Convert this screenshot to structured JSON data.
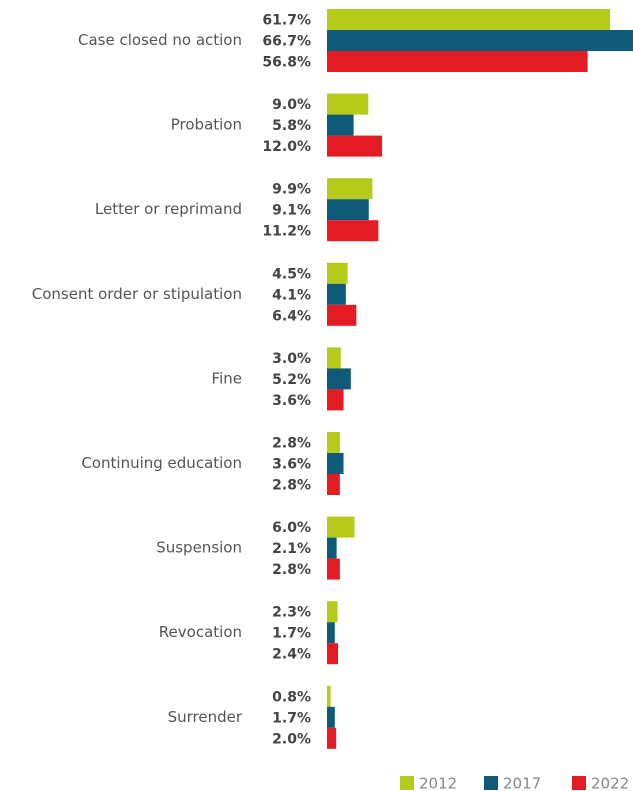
{
  "chart_data": {
    "type": "bar",
    "orientation": "horizontal",
    "categories": [
      "Case closed no action",
      "Probation",
      "Letter or reprimand",
      "Consent order or stipulation",
      "Fine",
      "Continuing education",
      "Suspension",
      "Revocation",
      "Surrender"
    ],
    "series": [
      {
        "name": "2012",
        "color": "#b5cb1a",
        "values": [
          61.7,
          9.0,
          9.9,
          4.5,
          3.0,
          2.8,
          6.0,
          2.3,
          0.8
        ],
        "value_labels": [
          "61.7%",
          "9.0%",
          "9.9%",
          "4.5%",
          "3.0%",
          "2.8%",
          "6.0%",
          "2.3%",
          "0.8%"
        ]
      },
      {
        "name": "2017",
        "color": "#0e5a78",
        "values": [
          66.7,
          5.8,
          9.1,
          4.1,
          5.2,
          3.6,
          2.1,
          1.7,
          1.7
        ],
        "value_labels": [
          "66.7%",
          "5.8%",
          "9.1%",
          "4.1%",
          "5.2%",
          "3.6%",
          "2.1%",
          "1.7%",
          "1.7%"
        ]
      },
      {
        "name": "2022",
        "color": "#e31b23",
        "values": [
          56.8,
          12.0,
          11.2,
          6.4,
          3.6,
          2.8,
          2.8,
          2.4,
          2.0
        ],
        "value_labels": [
          "56.8%",
          "12.0%",
          "11.2%",
          "6.4%",
          "3.6%",
          "2.8%",
          "2.8%",
          "2.4%",
          "2.0%"
        ]
      }
    ],
    "xlim": [
      0,
      66.7
    ],
    "legend": "bottom-right"
  }
}
